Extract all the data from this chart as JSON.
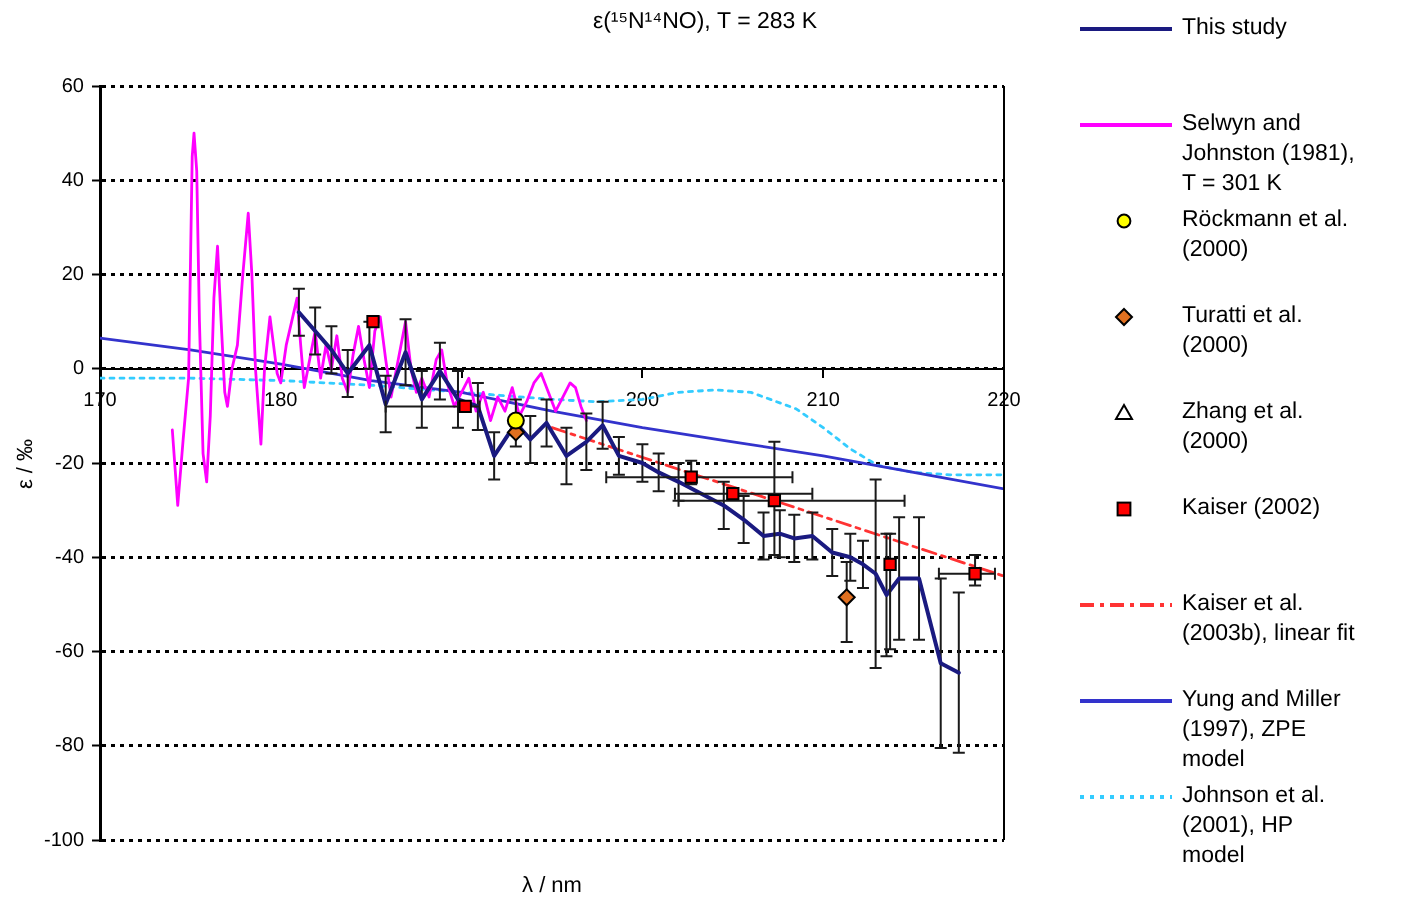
{
  "chart_data": {
    "type": "line",
    "title": "ε(¹⁵N¹⁴NO), T = 283 K",
    "xlabel": "λ / nm",
    "ylabel": "ε / ‰",
    "xlim": [
      170,
      220
    ],
    "xticks": [
      170,
      180,
      {
        "value": 190,
        "label": null
      },
      200,
      210,
      220
    ],
    "ylim": [
      -100,
      60
    ],
    "yticks": [
      -100,
      -80,
      -60,
      -40,
      -20,
      0,
      20,
      40,
      60
    ],
    "grid": "y",
    "legend": "right",
    "series": [
      {
        "name": "This study",
        "color": "#1a1a80",
        "line_style": "solid",
        "x": [
          181,
          181.9,
          182.8,
          183.7,
          184.9,
          185.8,
          186.9,
          187.8,
          188.8,
          189.8,
          190.9,
          191.8,
          193,
          193.8,
          194.7,
          195.8,
          196.9,
          197.8,
          198.7,
          200,
          200.9,
          202,
          204.5,
          205.6,
          206.7,
          207.6,
          208.4,
          209.4,
          210.5,
          211.5,
          212.2,
          212.9,
          213.5,
          214.2,
          215.3,
          216.5,
          217.5
        ],
        "values": [
          12,
          8,
          4,
          -1,
          5,
          -7.5,
          3.5,
          -6.5,
          -0.5,
          -6.5,
          -8,
          -18.5,
          -11.5,
          -15,
          -11.5,
          -18.5,
          -15.5,
          -12,
          -18.5,
          -20,
          -22,
          -24,
          -29,
          -32,
          -35.5,
          -35,
          -36,
          -35.5,
          -39,
          -40,
          -41.5,
          -43.5,
          -48,
          -44.5,
          -44.5,
          -62.5,
          -64.5
        ],
        "errors": [
          5,
          5,
          5,
          5,
          5,
          6,
          7,
          6,
          6,
          6,
          5,
          5,
          5,
          5,
          5,
          6,
          6,
          5,
          4,
          4,
          4,
          4,
          5,
          5,
          5,
          5,
          5,
          5,
          5,
          5,
          5,
          20,
          13,
          13,
          13,
          18,
          17
        ]
      },
      {
        "name": "Selwyn and Johnston (1981), T = 301 K",
        "color": "#ff00ff",
        "line_style": "solid",
        "x": [
          174,
          174.3,
          174.6,
          174.9,
          175.1,
          175.2,
          175.35,
          175.5,
          175.7,
          175.9,
          176.1,
          176.3,
          176.5,
          176.7,
          176.9,
          177.05,
          177.3,
          177.6,
          177.9,
          178.2,
          178.4,
          178.6,
          178.9,
          179.1,
          179.4,
          179.6,
          179.8,
          180,
          180.3,
          180.6,
          180.9,
          181.1,
          181.3,
          181.6,
          181.9,
          182.2,
          182.5,
          182.8,
          183.1,
          183.4,
          183.7,
          184,
          184.3,
          184.6,
          184.9,
          185.2,
          185.5,
          185.8,
          186.1,
          186.5,
          186.9,
          187.2,
          187.5,
          187.8,
          188.2,
          188.6,
          188.9,
          189.2,
          189.6,
          190,
          190.4,
          190.8,
          191.2,
          191.6,
          192,
          192.4,
          192.8,
          193.2,
          193.6,
          194,
          194.4,
          194.8,
          195.2,
          195.6,
          196,
          196.3,
          196.6,
          196.9
        ],
        "values": [
          -13,
          -29,
          -15,
          -2,
          45,
          50,
          42,
          10,
          -18,
          -24,
          -10,
          15,
          26,
          10,
          -5,
          -8,
          0,
          5,
          20,
          33,
          20,
          0,
          -16,
          0,
          11,
          5,
          -1,
          -3,
          5,
          10,
          15,
          5,
          -4,
          2,
          8,
          -2,
          5,
          0,
          7,
          -2,
          -5,
          3,
          9,
          2,
          -4,
          8,
          11,
          2,
          -6,
          2,
          10,
          0,
          -5,
          -2,
          -6,
          2,
          4,
          -3,
          -8,
          -5,
          -2,
          -9,
          -5,
          -11,
          -6,
          -9,
          -4,
          -10,
          -7,
          -3,
          -1,
          -5,
          -9,
          -6,
          -3,
          -4,
          -8,
          -11
        ]
      },
      {
        "name": "Röckmann et al. (2000)",
        "type": "scatter",
        "color": "#ffff00",
        "marker": "circle",
        "x": [
          193
        ],
        "values": [
          -11
        ]
      },
      {
        "name": "Turatti et al. (2000)",
        "type": "scatter",
        "color": "#e07020",
        "marker": "diamond",
        "x": [
          193,
          211.3
        ],
        "values": [
          -13.5,
          -48.5
        ],
        "errors": [
          null,
          [
            -58,
            -41
          ]
        ]
      },
      {
        "name": "Zhang et al. (2000)",
        "type": "scatter",
        "color": "#ffffff",
        "marker": "triangle"
      },
      {
        "name": "Kaiser (2002)",
        "type": "scatter",
        "color": "#ff0000",
        "marker": "square",
        "x": [
          185.1,
          190.2,
          202.7,
          205,
          207.3,
          213.7,
          218.4
        ],
        "values": [
          10,
          -8,
          -23,
          -26.5,
          -28,
          -41.5,
          -43.5
        ],
        "errors": [
          null,
          null,
          [
            -24.5,
            -19.5
          ],
          null,
          [
            -39.5,
            -15.5
          ],
          [
            -59.5,
            -35
          ],
          [
            -46,
            -39.5
          ]
        ],
        "xerrors": [
          null,
          [
            185.8,
            191
          ],
          [
            198,
            208.3
          ],
          [
            201.8,
            209.4
          ],
          [
            202,
            214.5
          ],
          null,
          [
            216.4,
            219.5
          ]
        ]
      },
      {
        "name": "Kaiser et al. (2003b), linear fit",
        "color": "#ff3333",
        "line_style": "dashdot",
        "x": [
          195,
          220
        ],
        "values": [
          -12.5,
          -44
        ]
      },
      {
        "name": "Yung and Miller (1997), ZPE model",
        "color": "#3333cc",
        "line_style": "solid",
        "x": [
          170,
          175,
          180,
          185,
          190,
          195,
          200,
          205,
          210,
          215,
          220
        ],
        "values": [
          6.5,
          4,
          1,
          -2.5,
          -5,
          -9,
          -12.5,
          -15.5,
          -18.5,
          -22,
          -25.5
        ]
      },
      {
        "name": "Johnson et al. (2001), HP model",
        "color": "#33ccff",
        "line_style": "dotted",
        "x": [
          170,
          175,
          180,
          185,
          190,
          195,
          197.5,
          200,
          202,
          204,
          206,
          208.5,
          210,
          211.5,
          213,
          215,
          217,
          220
        ],
        "values": [
          -2,
          -2,
          -2.5,
          -3.5,
          -5,
          -6.5,
          -7,
          -6.5,
          -5,
          -4.5,
          -5,
          -8.5,
          -12.5,
          -17,
          -20.5,
          -22,
          -22.5,
          -22.5
        ]
      }
    ]
  }
}
